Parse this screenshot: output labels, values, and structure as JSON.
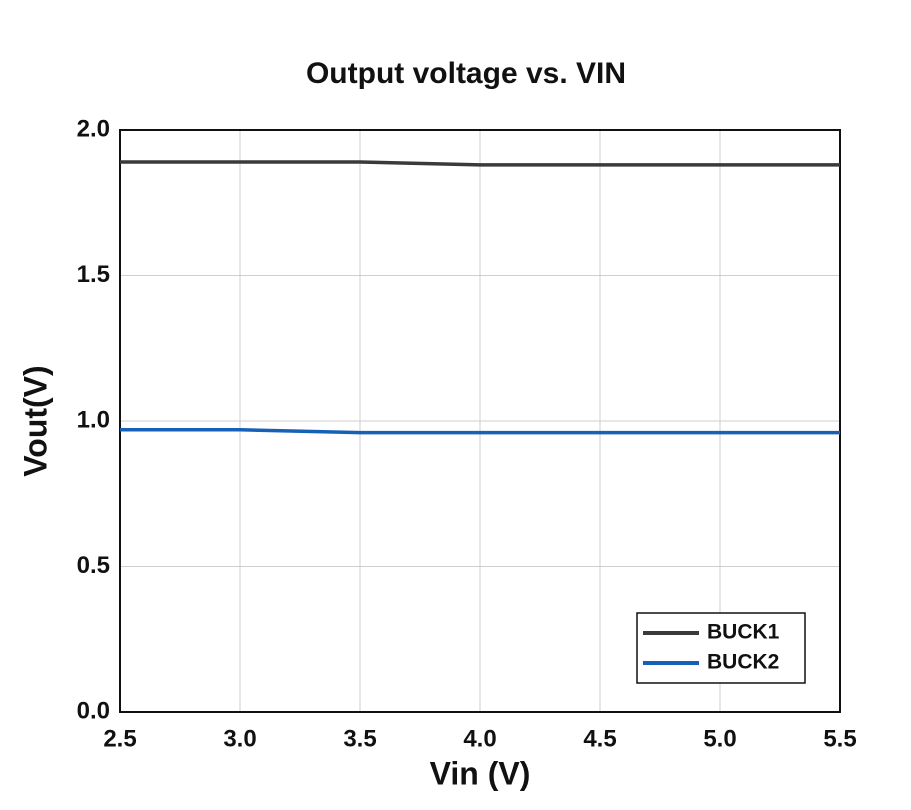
{
  "chart_data": {
    "type": "line",
    "title": "Output voltage vs. VIN",
    "x_label": "Vin  (V)",
    "y_label": "Vout(V)",
    "x": [
      2.5,
      3,
      3.5,
      4,
      4.5,
      5,
      5.5
    ],
    "series": [
      {
        "name": "BUCK1",
        "color": "#3a3a3a",
        "values": [
          1.89,
          1.89,
          1.89,
          1.88,
          1.88,
          1.88,
          1.88
        ]
      },
      {
        "name": "BUCK2",
        "color": "#1660b8",
        "values": [
          0.97,
          0.97,
          0.96,
          0.96,
          0.96,
          0.96,
          0.96
        ]
      }
    ],
    "xlim": [
      2.5,
      5.5
    ],
    "xticks": [
      2.5,
      {
        "value": 3,
        "label": "3.0"
      },
      3.5,
      {
        "value": 4,
        "label": "4.0"
      },
      4.5,
      {
        "value": 5,
        "label": "5.0"
      },
      5.5
    ],
    "ylim": [
      0,
      2
    ],
    "yticks": [
      {
        "value": 0,
        "label": "0.0"
      },
      0.5,
      {
        "value": 1,
        "label": "1.0"
      },
      1.5,
      {
        "value": 2,
        "label": "2.0"
      }
    ],
    "grid": true,
    "legend": "lower right"
  }
}
